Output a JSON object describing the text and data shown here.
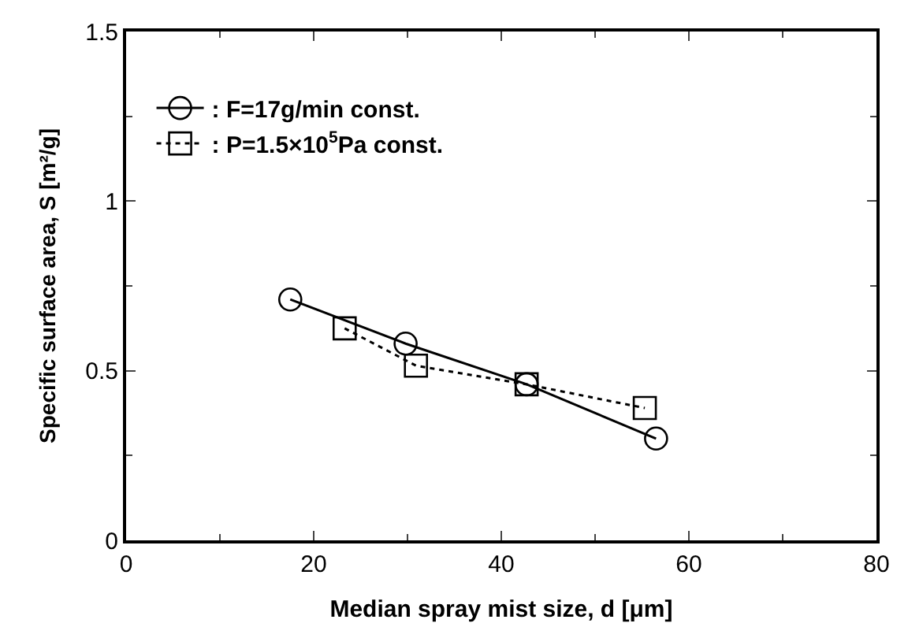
{
  "chart_data": {
    "type": "line",
    "xlabel": "Median spray mist size, d [μm]",
    "ylabel": "Specific surface area, S [m²/g]",
    "xlim": [
      0,
      80
    ],
    "xticks": [
      0,
      20,
      40,
      60,
      80
    ],
    "ylim": [
      0,
      1.5
    ],
    "yticks": [
      0,
      0.5,
      1,
      1.5
    ],
    "legend": "top left",
    "series": [
      {
        "name": ": F=17g/min const.",
        "color": "#000000",
        "marker": "circle",
        "line_style": "solid",
        "x": [
          17.5,
          29.8,
          42.7,
          56.5
        ],
        "values": [
          0.71,
          0.58,
          0.46,
          0.3
        ]
      },
      {
        "name": ": P=1.5×10$^{5}$Pa const.",
        "color": "#000000",
        "marker": "square",
        "line_style": "dotted",
        "x": [
          23.3,
          30.9,
          42.7,
          55.3
        ],
        "values": [
          0.625,
          0.515,
          0.46,
          0.39
        ]
      }
    ]
  }
}
